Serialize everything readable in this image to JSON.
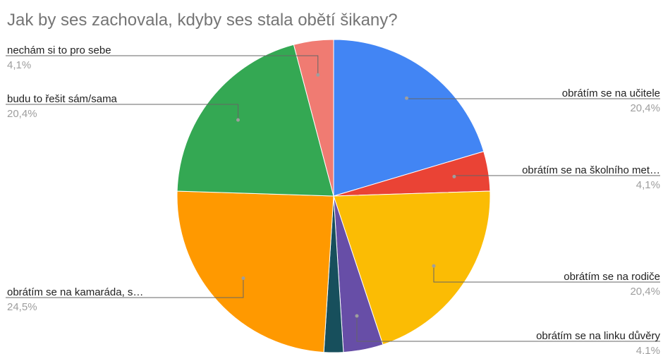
{
  "chart_data": {
    "type": "pie",
    "title": "Jak by ses zachovala, kdyby ses stala obětí šikany?",
    "categories": [
      "obrátím se na učitele",
      "obrátím se na školního met…",
      "obrátím se na rodiče",
      "obrátím se na linku důvěry",
      null,
      "obrátím se na kamaráda, s…",
      "budu to řešit sám/sama",
      "nechám si to pro sebe"
    ],
    "values": [
      20.4,
      4.1,
      20.4,
      4.1,
      2.0,
      24.5,
      20.4,
      4.1
    ],
    "value_labels": [
      "20,4%",
      "4,1%",
      "20,4%",
      "4,1%",
      null,
      "24,5%",
      "20,4%",
      "4,1%"
    ],
    "colors": [
      "#4285f4",
      "#ea4335",
      "#fbbc04",
      "#674ea7",
      "#174f5c",
      "#ff9900",
      "#34a853",
      "#f07b72"
    ]
  }
}
